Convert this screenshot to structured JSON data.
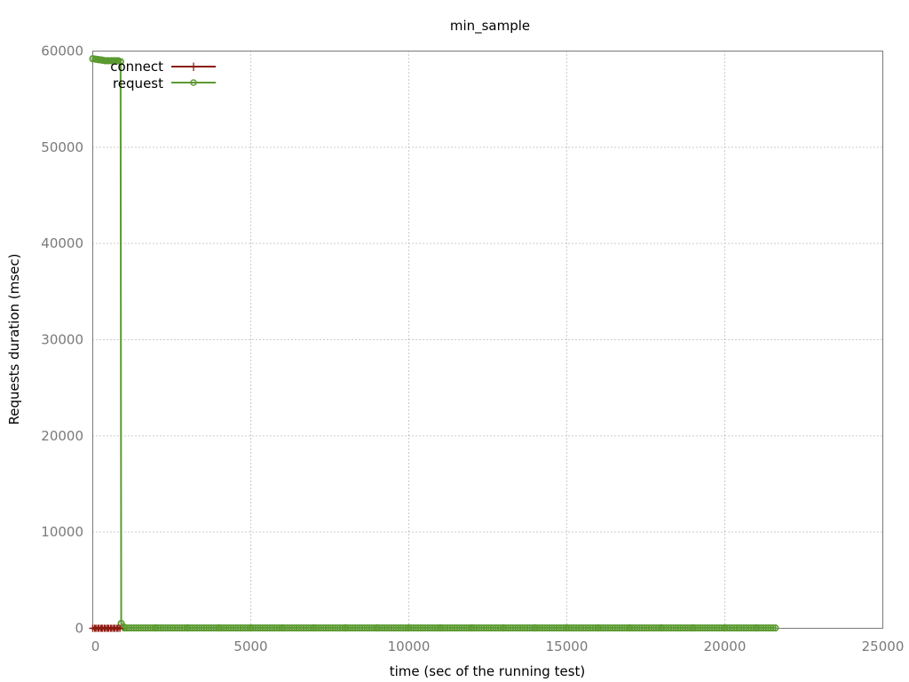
{
  "chart_data": {
    "type": "line",
    "title": "min_sample",
    "xlabel": "time (sec of the running test)",
    "ylabel": "Requests duration (msec)",
    "xlim": [
      0,
      25000
    ],
    "ylim": [
      0,
      60000
    ],
    "xticks": [
      "0",
      "5000",
      "10000",
      "15000",
      "20000",
      "25000"
    ],
    "yticks": [
      "0",
      "10000",
      "20000",
      "30000",
      "40000",
      "50000",
      "60000"
    ],
    "grid": true,
    "legend_position": "top-left",
    "series": [
      {
        "name": "connect",
        "color": "#8b1a10",
        "marker": "plus",
        "x": [
          0,
          100,
          200,
          300,
          400,
          500,
          600,
          700,
          800,
          880
        ],
        "y": [
          0,
          0,
          0,
          0,
          0,
          0,
          0,
          0,
          0,
          0
        ]
      },
      {
        "name": "request",
        "color": "#5c9a32",
        "marker": "circle",
        "x": [
          0,
          100,
          200,
          300,
          400,
          500,
          600,
          700,
          800,
          880,
          900,
          1000,
          2000,
          3000,
          4000,
          5000,
          6000,
          7000,
          8000,
          9000,
          10000,
          11000,
          12000,
          13000,
          14000,
          15000,
          16000,
          17000,
          18000,
          19000,
          20000,
          21000,
          21600
        ],
        "y": [
          59200,
          59150,
          59100,
          59050,
          59000,
          59000,
          59000,
          59000,
          59000,
          58900,
          500,
          30,
          30,
          30,
          30,
          30,
          30,
          30,
          30,
          30,
          30,
          30,
          30,
          30,
          30,
          30,
          30,
          30,
          30,
          30,
          30,
          30,
          30
        ]
      }
    ]
  }
}
